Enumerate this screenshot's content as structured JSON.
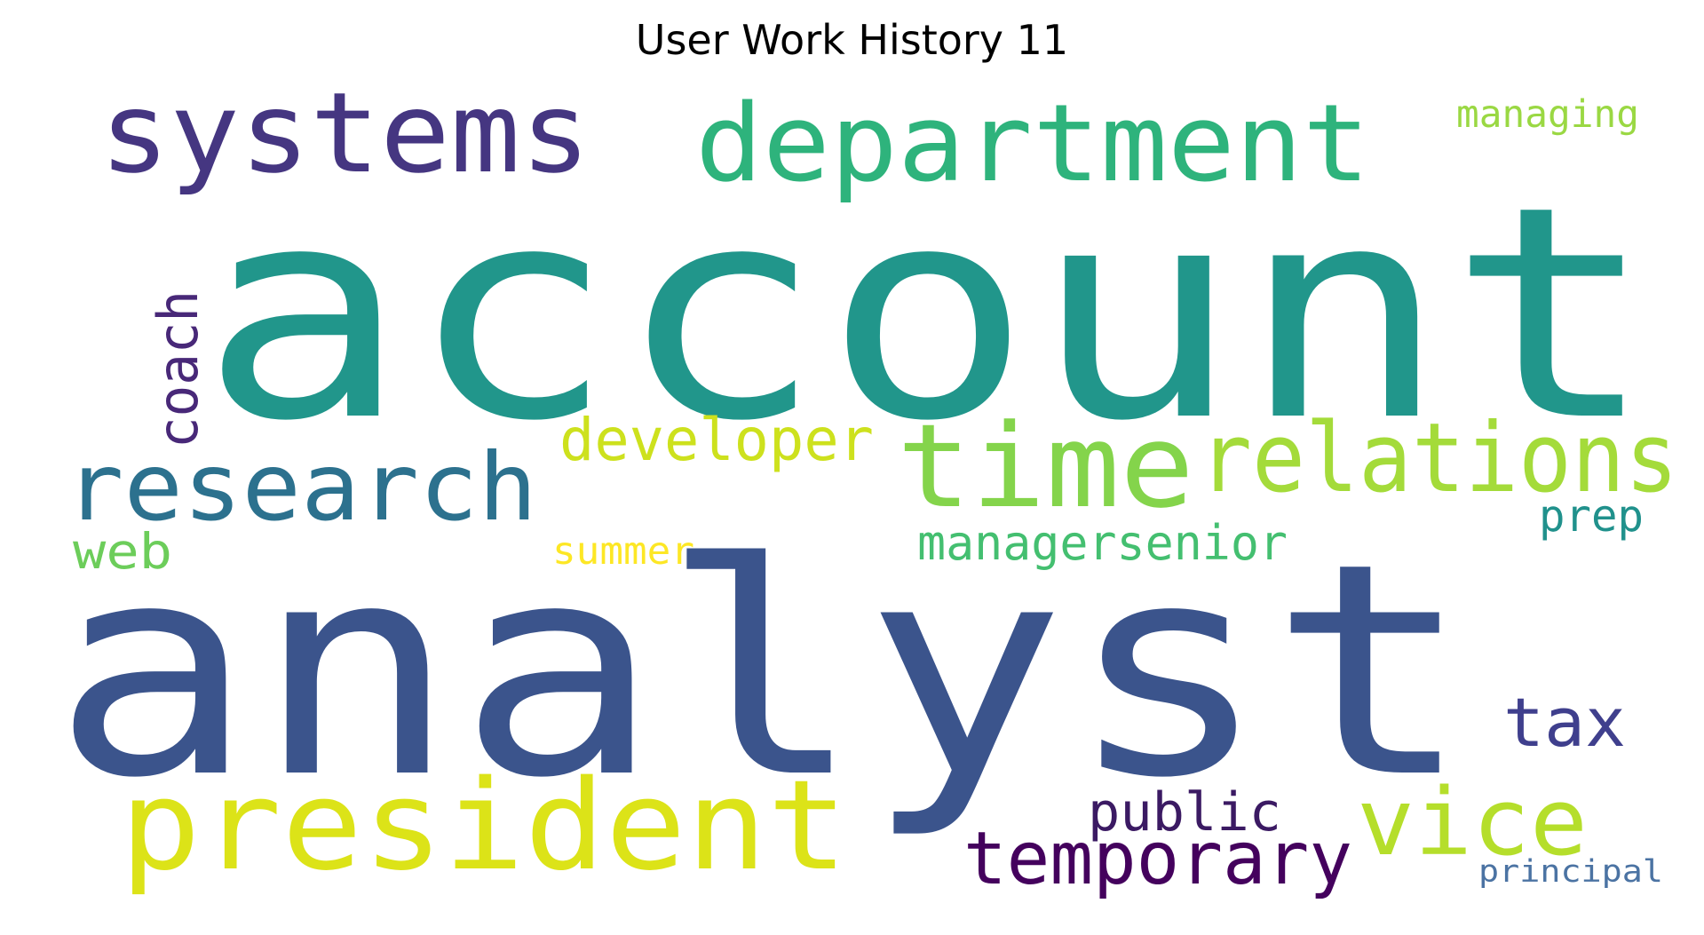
{
  "title": "User Work History 11",
  "words": [
    {
      "text": "account",
      "color": "#21968b"
    },
    {
      "text": "analyst",
      "color": "#3b548c"
    },
    {
      "text": "systems",
      "color": "#453681"
    },
    {
      "text": "department",
      "color": "#2eb37c"
    },
    {
      "text": "time",
      "color": "#84d44b"
    },
    {
      "text": "relations",
      "color": "#a4db3a"
    },
    {
      "text": "research",
      "color": "#2c718e"
    },
    {
      "text": "president",
      "color": "#dce318"
    },
    {
      "text": "vice",
      "color": "#b5de2b"
    },
    {
      "text": "temporary",
      "color": "#44015d"
    },
    {
      "text": "developer",
      "color": "#cde11d"
    },
    {
      "text": "coach",
      "color": "#482878"
    },
    {
      "text": "tax",
      "color": "#3f3f8d"
    },
    {
      "text": "public",
      "color": "#3b1a63"
    },
    {
      "text": "managersenior",
      "color": "#44bf70"
    },
    {
      "text": "web",
      "color": "#6ccd5a"
    },
    {
      "text": "summer",
      "color": "#fde725"
    },
    {
      "text": "prep",
      "color": "#20918c"
    },
    {
      "text": "managing",
      "color": "#9ad843"
    },
    {
      "text": "principal",
      "color": "#4b73a3"
    }
  ]
}
